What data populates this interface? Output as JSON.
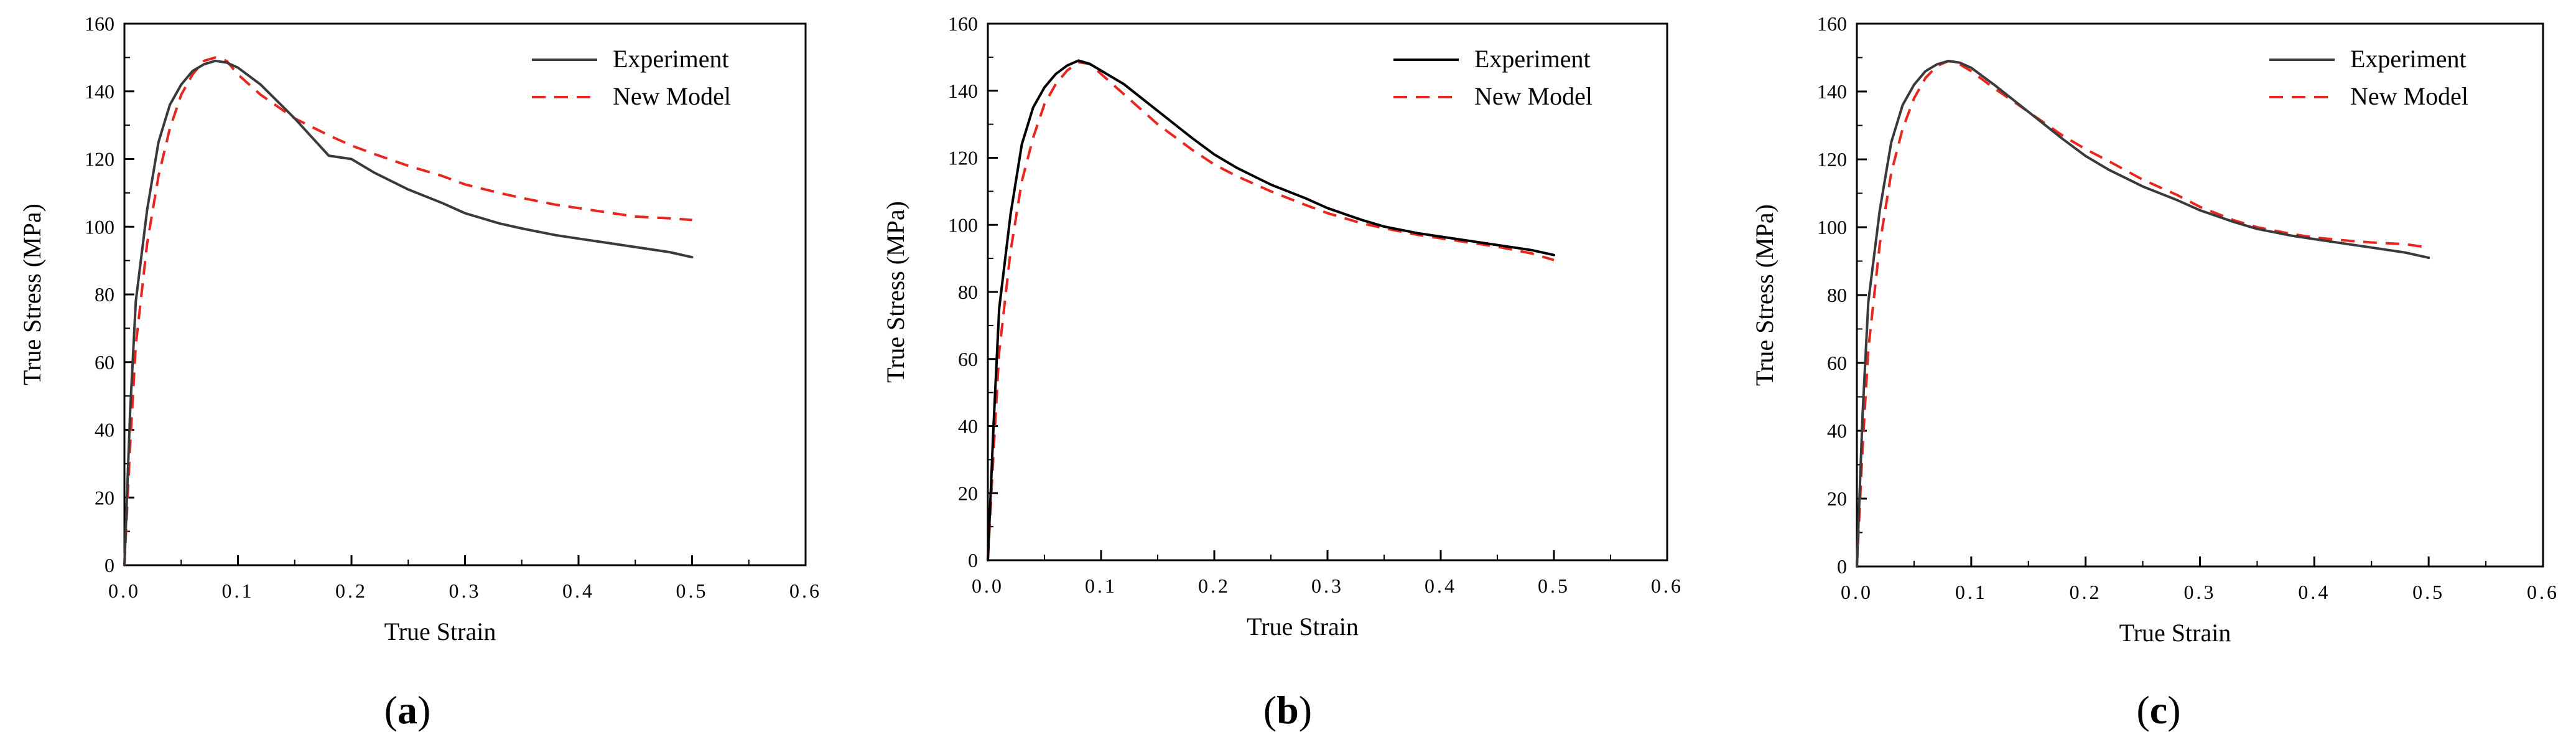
{
  "chart_data": [
    {
      "type": "line",
      "panel_label": "(a)",
      "panel_letter": "a",
      "xlabel": "True Strain",
      "ylabel": "True Stress (MPa)",
      "xlim": [
        0.0,
        0.6
      ],
      "ylim": [
        0,
        160
      ],
      "xticks": [
        0.0,
        0.1,
        0.2,
        0.3,
        0.4,
        0.5,
        0.6
      ],
      "xtick_labels": [
        "0.0",
        "0.1",
        "0.2",
        "0.3",
        "0.4",
        "0.5",
        "0.6"
      ],
      "yticks": [
        0,
        20,
        40,
        60,
        80,
        100,
        120,
        140,
        160
      ],
      "ytick_labels": [
        "0",
        "20",
        "40",
        "60",
        "80",
        "100",
        "120",
        "140",
        "160"
      ],
      "legend": "top-right",
      "series": [
        {
          "name": "Experiment",
          "style": "solid",
          "color": "#3a3a3a",
          "x": [
            0.0,
            0.005,
            0.01,
            0.02,
            0.03,
            0.04,
            0.05,
            0.06,
            0.07,
            0.08,
            0.09,
            0.1,
            0.12,
            0.15,
            0.18,
            0.2,
            0.22,
            0.25,
            0.28,
            0.3,
            0.33,
            0.35,
            0.38,
            0.4,
            0.43,
            0.45,
            0.48,
            0.5
          ],
          "y": [
            0,
            45,
            78,
            105,
            125,
            136,
            142,
            146,
            148,
            149,
            148.5,
            147,
            142,
            132,
            121,
            120,
            116,
            111,
            107,
            104,
            101,
            99.5,
            97.5,
            96.5,
            95,
            94,
            92.5,
            91
          ]
        },
        {
          "name": "New Model",
          "style": "dashed",
          "color": "#e8251f",
          "x": [
            0.0,
            0.005,
            0.01,
            0.02,
            0.03,
            0.04,
            0.05,
            0.06,
            0.07,
            0.08,
            0.09,
            0.1,
            0.12,
            0.15,
            0.18,
            0.2,
            0.22,
            0.25,
            0.28,
            0.3,
            0.33,
            0.35,
            0.38,
            0.4,
            0.43,
            0.45,
            0.48,
            0.5
          ],
          "y": [
            0,
            35,
            65,
            95,
            115,
            129,
            139,
            145,
            149,
            150,
            149,
            145,
            139,
            132,
            127,
            124,
            121.5,
            118,
            115,
            112.5,
            110,
            108.5,
            106.5,
            105.5,
            104,
            103,
            102.5,
            102
          ]
        }
      ]
    },
    {
      "type": "line",
      "panel_label": "(b)",
      "panel_letter": "b",
      "xlabel": "True Strain",
      "ylabel": "True Stress (MPa)",
      "xlim": [
        0.0,
        0.6
      ],
      "ylim": [
        0,
        160
      ],
      "xticks": [
        0.0,
        0.1,
        0.2,
        0.3,
        0.4,
        0.5,
        0.6
      ],
      "xtick_labels": [
        "0.0",
        "0.1",
        "0.2",
        "0.3",
        "0.4",
        "0.5",
        "0.6"
      ],
      "yticks": [
        0,
        20,
        40,
        60,
        80,
        100,
        120,
        140,
        160
      ],
      "ytick_labels": [
        "0",
        "20",
        "40",
        "60",
        "80",
        "100",
        "120",
        "140",
        "160"
      ],
      "legend": "top-right",
      "series": [
        {
          "name": "Experiment",
          "style": "solid",
          "color": "#000000",
          "x": [
            0.0,
            0.005,
            0.01,
            0.02,
            0.03,
            0.04,
            0.05,
            0.06,
            0.07,
            0.08,
            0.09,
            0.1,
            0.12,
            0.15,
            0.18,
            0.2,
            0.22,
            0.25,
            0.28,
            0.3,
            0.33,
            0.35,
            0.38,
            0.4,
            0.43,
            0.45,
            0.48,
            0.5
          ],
          "y": [
            0,
            40,
            75,
            103,
            124,
            135,
            141,
            145,
            147.5,
            149,
            148,
            146,
            142,
            134,
            126,
            121,
            117,
            112,
            108,
            105,
            101.5,
            99.5,
            97.5,
            96.5,
            95,
            94,
            92.5,
            91
          ]
        },
        {
          "name": "New Model",
          "style": "dashed",
          "color": "#e8251f",
          "x": [
            0.0,
            0.005,
            0.01,
            0.02,
            0.03,
            0.04,
            0.05,
            0.06,
            0.07,
            0.08,
            0.09,
            0.1,
            0.12,
            0.15,
            0.18,
            0.2,
            0.22,
            0.25,
            0.28,
            0.3,
            0.33,
            0.35,
            0.38,
            0.4,
            0.43,
            0.45,
            0.48,
            0.5
          ],
          "y": [
            0,
            32,
            62,
            92,
            113,
            126,
            136,
            142,
            146,
            148.5,
            148,
            145,
            139,
            130,
            122.5,
            118,
            114.5,
            110,
            106,
            103.5,
            100.5,
            99,
            97,
            96,
            94.5,
            93.5,
            91.5,
            89.5
          ]
        }
      ]
    },
    {
      "type": "line",
      "panel_label": "(c)",
      "panel_letter": "c",
      "xlabel": "True Strain",
      "ylabel": "True Stress (MPa)",
      "xlim": [
        0.0,
        0.6
      ],
      "ylim": [
        0,
        160
      ],
      "xticks": [
        0.0,
        0.1,
        0.2,
        0.3,
        0.4,
        0.5,
        0.6
      ],
      "xtick_labels": [
        "0.0",
        "0.1",
        "0.2",
        "0.3",
        "0.4",
        "0.5",
        "0.6"
      ],
      "yticks": [
        0,
        20,
        40,
        60,
        80,
        100,
        120,
        140,
        160
      ],
      "ytick_labels": [
        "0",
        "20",
        "40",
        "60",
        "80",
        "100",
        "120",
        "140",
        "160"
      ],
      "legend": "top-right",
      "series": [
        {
          "name": "Experiment",
          "style": "solid",
          "color": "#3a3a3a",
          "x": [
            0.0,
            0.005,
            0.01,
            0.02,
            0.03,
            0.04,
            0.05,
            0.06,
            0.07,
            0.08,
            0.09,
            0.1,
            0.12,
            0.15,
            0.18,
            0.2,
            0.22,
            0.25,
            0.28,
            0.3,
            0.33,
            0.35,
            0.38,
            0.4,
            0.43,
            0.45,
            0.48,
            0.5
          ],
          "y": [
            0,
            45,
            78,
            105,
            125,
            136,
            142,
            146,
            148,
            149,
            148.5,
            147,
            142,
            134,
            126,
            121,
            117,
            112,
            108,
            105,
            101.5,
            99.5,
            97.5,
            96.5,
            95,
            94,
            92.5,
            91
          ]
        },
        {
          "name": "New Model",
          "style": "dashed",
          "color": "#e8251f",
          "x": [
            0.0,
            0.005,
            0.01,
            0.02,
            0.03,
            0.04,
            0.05,
            0.06,
            0.07,
            0.08,
            0.09,
            0.1,
            0.12,
            0.15,
            0.18,
            0.2,
            0.22,
            0.25,
            0.28,
            0.3,
            0.33,
            0.35,
            0.38,
            0.4,
            0.43,
            0.45,
            0.48,
            0.5
          ],
          "y": [
            0,
            35,
            64,
            95,
            116,
            129,
            138,
            144,
            147.5,
            149,
            148,
            146,
            141,
            134,
            127,
            123,
            119.5,
            114,
            109.5,
            106,
            102,
            100,
            98,
            97,
            96,
            95.5,
            95,
            94
          ]
        }
      ]
    }
  ]
}
